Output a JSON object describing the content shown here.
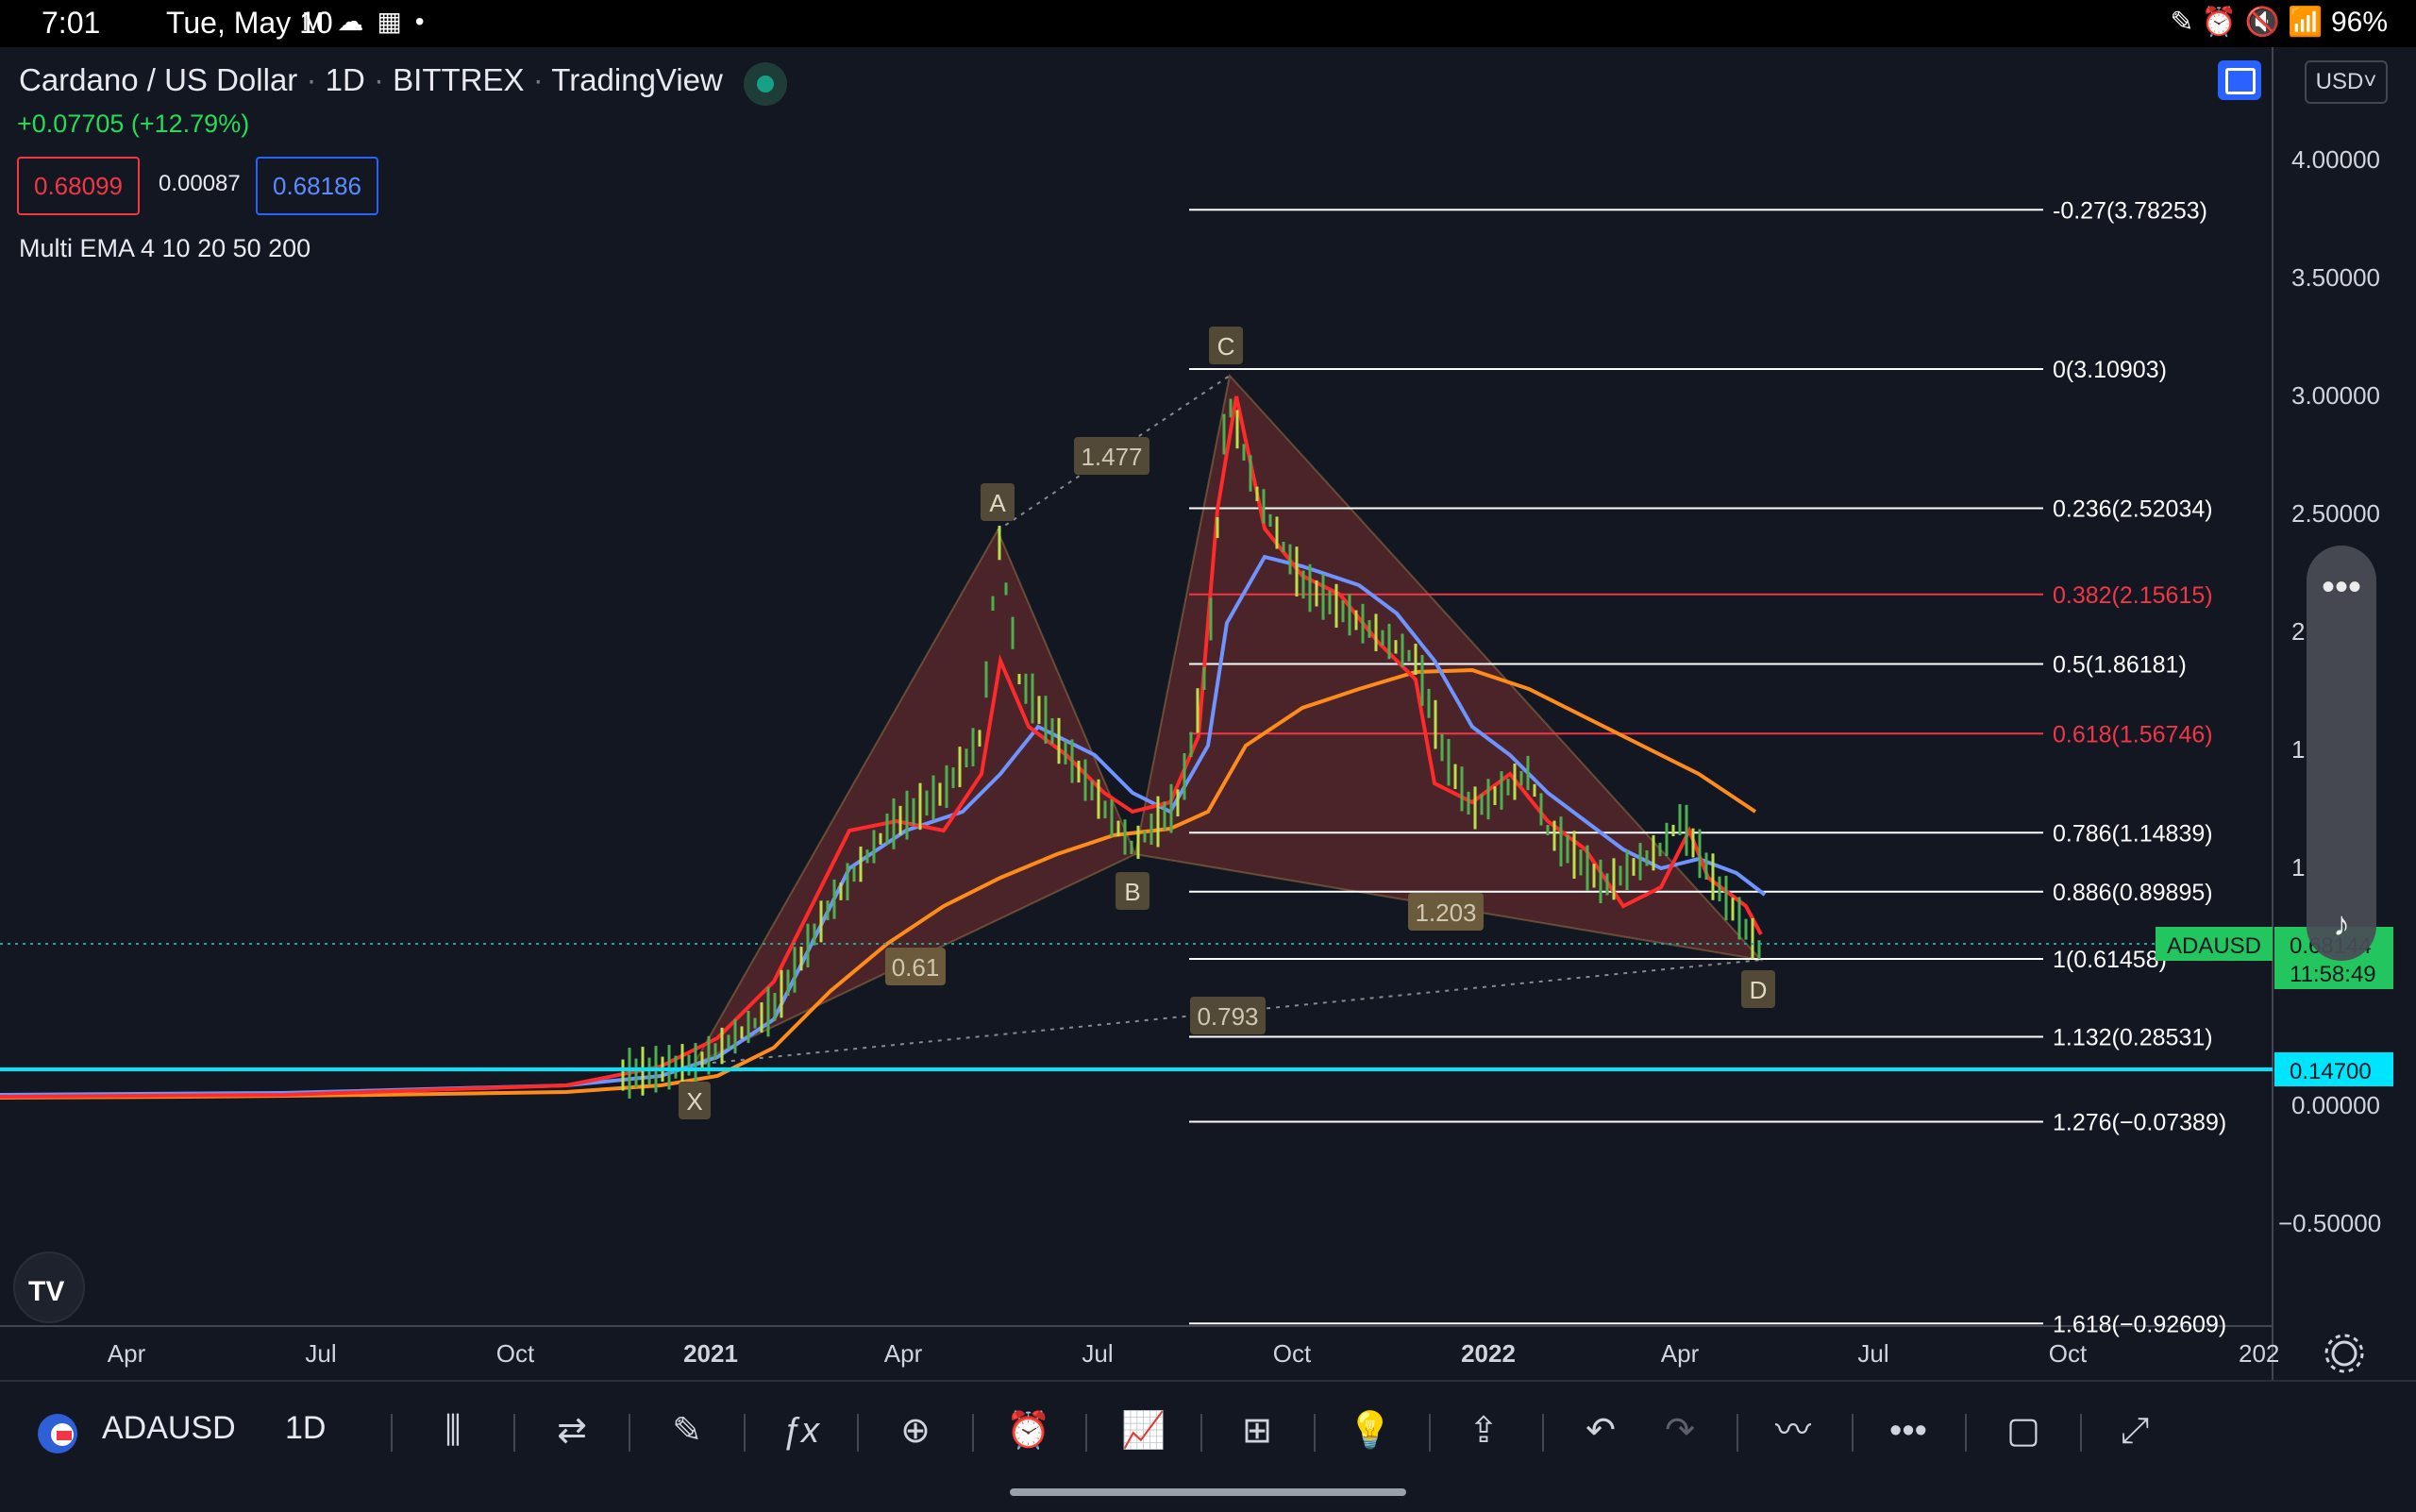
{
  "status_bar": {
    "time": "7:01",
    "date": "Tue, May 10",
    "left_icons": [
      "gmail-icon",
      "cloud-icon",
      "calendar-icon",
      "dot-icon"
    ],
    "right_icons": [
      "pen-icon",
      "alarm-icon",
      "mute-icon",
      "wifi-icon"
    ],
    "battery": "96%"
  },
  "header": {
    "symbol_name": "Cardano / US Dollar",
    "interval": "1D",
    "exchange": "BITTREX",
    "source": "TradingView",
    "change": "+0.07705 (+12.79%)",
    "bid": "0.68099",
    "spread": "0.00087",
    "ask": "0.68186",
    "indicator": "Multi EMA 4 10 20 50 200",
    "currency": "USD"
  },
  "colors": {
    "background": "#131722",
    "positive": "#26a69a",
    "bid": "#f23645",
    "ask": "#2962ff",
    "harmonic_fill": "#6b2a2a",
    "ema_red": "#ff2a2a",
    "ema_blue": "#6f94ff",
    "ema_orange": "#ff8c1a",
    "horizontal_line": "#00e5ff"
  },
  "price_axis": {
    "labels": [
      "4.00000",
      "3.50000",
      "3.00000",
      "2.50000",
      "2",
      "1",
      "1",
      "0.00000",
      "−0.50000"
    ],
    "current_symbol": "ADAUSD",
    "current_price": "0.68144",
    "countdown": "11:58:49",
    "horizontal_line_price": "0.14700"
  },
  "time_axis": {
    "labels": [
      "Apr",
      "Jul",
      "Oct",
      "2021",
      "Apr",
      "Jul",
      "Oct",
      "2022",
      "Apr",
      "Jul",
      "Oct",
      "202"
    ]
  },
  "fibonacci": {
    "levels": [
      {
        "label": "-0.27(3.78253)",
        "ratio": -0.27,
        "price": 3.78253,
        "color": "#ffffff"
      },
      {
        "label": "0(3.10903)",
        "ratio": 0,
        "price": 3.10903,
        "color": "#ffffff"
      },
      {
        "label": "0.236(2.52034)",
        "ratio": 0.236,
        "price": 2.52034,
        "color": "#ffffff"
      },
      {
        "label": "0.382(2.15615)",
        "ratio": 0.382,
        "price": 2.15615,
        "color": "#f23645"
      },
      {
        "label": "0.5(1.86181)",
        "ratio": 0.5,
        "price": 1.86181,
        "color": "#ffffff"
      },
      {
        "label": "0.618(1.56746)",
        "ratio": 0.618,
        "price": 1.56746,
        "color": "#f23645"
      },
      {
        "label": "0.786(1.14839)",
        "ratio": 0.786,
        "price": 1.14839,
        "color": "#ffffff"
      },
      {
        "label": "0.886(0.89895)",
        "ratio": 0.886,
        "price": 0.89895,
        "color": "#ffffff"
      },
      {
        "label": "1(0.61458)",
        "ratio": 1,
        "price": 0.61458,
        "color": "#ffffff"
      },
      {
        "label": "1.132(0.28531)",
        "ratio": 1.132,
        "price": 0.28531,
        "color": "#ffffff"
      },
      {
        "label": "1.276(−0.07389)",
        "ratio": 1.276,
        "price": -0.07389,
        "color": "#ffffff"
      },
      {
        "label": "1.618(−0.92609)",
        "ratio": 1.618,
        "price": -0.92609,
        "color": "#ffffff"
      }
    ]
  },
  "harmonic": {
    "points": [
      "X",
      "A",
      "B",
      "C",
      "D"
    ],
    "ratios": [
      "1.477",
      "0.61",
      "1.203",
      "0.793"
    ]
  },
  "bottom_toolbar": {
    "symbol": "ADAUSD",
    "interval": "1D",
    "tools": [
      "candles-icon",
      "replay-icon",
      "draw-icon",
      "indicators-icon",
      "add-icon",
      "alert-icon",
      "compare-icon",
      "layout-icon",
      "ideas-icon",
      "share-icon",
      "undo-icon",
      "redo-icon",
      "chart-type-icon",
      "more-icon",
      "square-icon",
      "fullscreen-icon"
    ]
  }
}
